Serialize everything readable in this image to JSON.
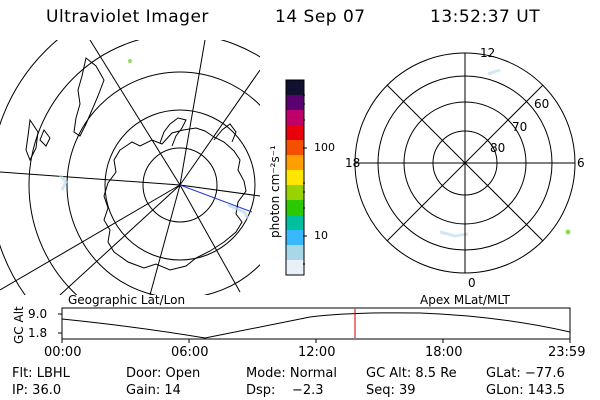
{
  "header": {
    "instrument": "Ultraviolet Imager",
    "date": "14 Sep 07",
    "time": "13:52:37 UT"
  },
  "colorbar": {
    "unit_label": "photon cm⁻²s⁻¹",
    "ticks": [
      "100",
      "10"
    ],
    "colors": [
      "#101030",
      "#5a0070",
      "#c0006a",
      "#e8000c",
      "#f45000",
      "#ff9e00",
      "#ffe600",
      "#9ad200",
      "#2cc800",
      "#00bfa0",
      "#38b8ff",
      "#a8d8e8",
      "#e8f0f8"
    ]
  },
  "left_panel": {
    "caption": "Geographic Lat/Lon"
  },
  "right_panel": {
    "caption": "Apex MLat/MLT",
    "mlt_labels": [
      "12",
      "18",
      "6",
      "0"
    ],
    "lat_labels": [
      "60",
      "70",
      "80"
    ]
  },
  "altitude_plot": {
    "ylabel": "GC Alt",
    "yticks": [
      "9.0",
      "1.8"
    ],
    "xticks": [
      "00:00",
      "06:00",
      "12:00",
      "18:00",
      "23:59"
    ],
    "cursor_color": "#cc0000"
  },
  "status": {
    "filter": "Flt: LBHL",
    "door": "Door: Open",
    "mode": "Mode: Normal",
    "gc_alt": "GC Alt: 8.5 Re",
    "glat": "GLat: −77.6",
    "ip": "IP: 36.0",
    "gain": "Gain: 14",
    "dsp": "Dsp:    −2.3",
    "seq": "Seq: 39",
    "glon": "GLon: 143.5"
  }
}
